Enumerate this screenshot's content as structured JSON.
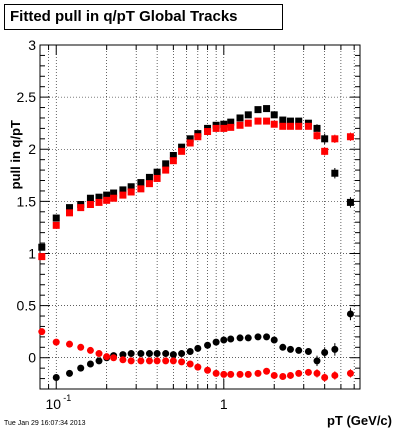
{
  "chart_data": {
    "type": "scatter",
    "title": "Fitted pull in q/pT  Global Tracks",
    "xlabel": "pT (GeV/c)",
    "ylabel": "pull in q/pT",
    "xscale": "log",
    "xlim": [
      0.08,
      6.5
    ],
    "ylim": [
      -0.3,
      3.0
    ],
    "grid": true,
    "x_ticks": [
      {
        "value": 0.1,
        "label": "10",
        "exponent": "-1"
      },
      {
        "value": 1,
        "label": "1",
        "exponent": ""
      }
    ],
    "y_ticks": [
      {
        "value": 0,
        "label": "0"
      },
      {
        "value": 0.5,
        "label": "0.5"
      },
      {
        "value": 1,
        "label": "1"
      },
      {
        "value": 1.5,
        "label": "1.5"
      },
      {
        "value": 2,
        "label": "2"
      },
      {
        "value": 2.5,
        "label": "2.5"
      },
      {
        "value": 3,
        "label": "3"
      }
    ],
    "series": [
      {
        "color": "#000000",
        "marker": "square",
        "points": [
          [
            0.082,
            1.06
          ],
          [
            0.1,
            1.34
          ],
          [
            0.12,
            1.44
          ],
          [
            0.14,
            1.47
          ],
          [
            0.16,
            1.53
          ],
          [
            0.18,
            1.54
          ],
          [
            0.2,
            1.56
          ],
          [
            0.22,
            1.58
          ],
          [
            0.25,
            1.61
          ],
          [
            0.28,
            1.64
          ],
          [
            0.32,
            1.68
          ],
          [
            0.36,
            1.73
          ],
          [
            0.4,
            1.78
          ],
          [
            0.45,
            1.86
          ],
          [
            0.5,
            1.94
          ],
          [
            0.56,
            2.02
          ],
          [
            0.63,
            2.1
          ],
          [
            0.7,
            2.15
          ],
          [
            0.8,
            2.2
          ],
          [
            0.9,
            2.23
          ],
          [
            1.0,
            2.24
          ],
          [
            1.1,
            2.26
          ],
          [
            1.25,
            2.3
          ],
          [
            1.4,
            2.33
          ],
          [
            1.6,
            2.38
          ],
          [
            1.8,
            2.39
          ],
          [
            2.0,
            2.33
          ],
          [
            2.25,
            2.28
          ],
          [
            2.5,
            2.27
          ],
          [
            2.8,
            2.27
          ],
          [
            3.2,
            2.25
          ],
          [
            3.6,
            2.2
          ],
          [
            4.0,
            2.1
          ],
          [
            4.6,
            1.77
          ],
          [
            5.7,
            1.49
          ]
        ],
        "errors": [
          0,
          0,
          0,
          0,
          0,
          0,
          0,
          0,
          0,
          0,
          0,
          0,
          0,
          0,
          0,
          0,
          0,
          0,
          0,
          0,
          0,
          0,
          0,
          0,
          0,
          0,
          0,
          0,
          0,
          0,
          0,
          0.04,
          0.05,
          0.05,
          0.05
        ]
      },
      {
        "color": "#ff0000",
        "marker": "square",
        "points": [
          [
            0.082,
            0.97
          ],
          [
            0.1,
            1.27
          ],
          [
            0.12,
            1.39
          ],
          [
            0.14,
            1.44
          ],
          [
            0.16,
            1.47
          ],
          [
            0.18,
            1.49
          ],
          [
            0.2,
            1.51
          ],
          [
            0.22,
            1.53
          ],
          [
            0.25,
            1.56
          ],
          [
            0.28,
            1.59
          ],
          [
            0.32,
            1.62
          ],
          [
            0.36,
            1.67
          ],
          [
            0.4,
            1.72
          ],
          [
            0.45,
            1.8
          ],
          [
            0.5,
            1.89
          ],
          [
            0.56,
            1.98
          ],
          [
            0.63,
            2.06
          ],
          [
            0.7,
            2.12
          ],
          [
            0.8,
            2.17
          ],
          [
            0.9,
            2.2
          ],
          [
            1.0,
            2.2
          ],
          [
            1.1,
            2.21
          ],
          [
            1.25,
            2.23
          ],
          [
            1.4,
            2.25
          ],
          [
            1.6,
            2.27
          ],
          [
            1.8,
            2.27
          ],
          [
            2.0,
            2.24
          ],
          [
            2.25,
            2.22
          ],
          [
            2.5,
            2.22
          ],
          [
            2.8,
            2.22
          ],
          [
            3.2,
            2.22
          ],
          [
            3.6,
            2.13
          ],
          [
            4.0,
            1.98
          ],
          [
            4.6,
            2.1
          ],
          [
            5.7,
            2.12
          ]
        ],
        "errors": [
          0,
          0,
          0,
          0,
          0,
          0,
          0,
          0,
          0,
          0,
          0,
          0,
          0,
          0,
          0,
          0,
          0,
          0,
          0,
          0,
          0,
          0,
          0,
          0,
          0,
          0,
          0,
          0,
          0,
          0,
          0,
          0.04,
          0.04,
          0.04,
          0.04
        ]
      },
      {
        "color": "#000000",
        "marker": "circle",
        "points": [
          [
            0.1,
            -0.19
          ],
          [
            0.12,
            -0.15
          ],
          [
            0.14,
            -0.1
          ],
          [
            0.16,
            -0.06
          ],
          [
            0.18,
            -0.03
          ],
          [
            0.2,
            0.0
          ],
          [
            0.22,
            0.02
          ],
          [
            0.25,
            0.03
          ],
          [
            0.28,
            0.04
          ],
          [
            0.32,
            0.04
          ],
          [
            0.36,
            0.04
          ],
          [
            0.4,
            0.04
          ],
          [
            0.45,
            0.04
          ],
          [
            0.5,
            0.03
          ],
          [
            0.56,
            0.04
          ],
          [
            0.63,
            0.06
          ],
          [
            0.7,
            0.09
          ],
          [
            0.8,
            0.12
          ],
          [
            0.9,
            0.15
          ],
          [
            1.0,
            0.17
          ],
          [
            1.1,
            0.18
          ],
          [
            1.25,
            0.19
          ],
          [
            1.4,
            0.19
          ],
          [
            1.6,
            0.2
          ],
          [
            1.8,
            0.2
          ],
          [
            2.0,
            0.17
          ],
          [
            2.25,
            0.1
          ],
          [
            2.5,
            0.08
          ],
          [
            2.8,
            0.07
          ],
          [
            3.2,
            0.06
          ],
          [
            3.6,
            -0.03
          ],
          [
            4.0,
            0.05
          ],
          [
            4.6,
            0.08
          ],
          [
            5.7,
            0.42
          ]
        ],
        "errors": [
          0,
          0,
          0,
          0,
          0,
          0,
          0,
          0,
          0,
          0,
          0,
          0,
          0,
          0,
          0,
          0,
          0,
          0,
          0,
          0,
          0,
          0,
          0,
          0,
          0,
          0,
          0,
          0,
          0,
          0,
          0.05,
          0.05,
          0.06,
          0.06
        ]
      },
      {
        "color": "#ff0000",
        "marker": "circle",
        "points": [
          [
            0.082,
            0.25
          ],
          [
            0.1,
            0.15
          ],
          [
            0.12,
            0.13
          ],
          [
            0.14,
            0.1
          ],
          [
            0.16,
            0.07
          ],
          [
            0.18,
            0.04
          ],
          [
            0.2,
            0.01
          ],
          [
            0.22,
            0.0
          ],
          [
            0.25,
            -0.02
          ],
          [
            0.28,
            -0.03
          ],
          [
            0.32,
            -0.03
          ],
          [
            0.36,
            -0.03
          ],
          [
            0.4,
            -0.03
          ],
          [
            0.45,
            -0.03
          ],
          [
            0.5,
            -0.03
          ],
          [
            0.56,
            -0.04
          ],
          [
            0.63,
            -0.06
          ],
          [
            0.7,
            -0.09
          ],
          [
            0.8,
            -0.12
          ],
          [
            0.9,
            -0.15
          ],
          [
            1.0,
            -0.16
          ],
          [
            1.1,
            -0.16
          ],
          [
            1.25,
            -0.16
          ],
          [
            1.4,
            -0.16
          ],
          [
            1.6,
            -0.15
          ],
          [
            1.8,
            -0.13
          ],
          [
            2.0,
            -0.17
          ],
          [
            2.25,
            -0.18
          ],
          [
            2.5,
            -0.17
          ],
          [
            2.8,
            -0.15
          ],
          [
            3.2,
            -0.14
          ],
          [
            3.6,
            -0.15
          ],
          [
            4.0,
            -0.19
          ],
          [
            4.6,
            -0.17
          ],
          [
            5.7,
            -0.15
          ]
        ],
        "errors": [
          0,
          0,
          0,
          0,
          0,
          0,
          0,
          0,
          0,
          0,
          0,
          0,
          0,
          0,
          0,
          0,
          0,
          0,
          0,
          0,
          0,
          0,
          0,
          0,
          0,
          0,
          0,
          0,
          0,
          0,
          0,
          0.04,
          0.04,
          0.04,
          0.04
        ]
      }
    ]
  },
  "footer": {
    "timestamp": "Tue Jan 29 16:07:34 2013"
  }
}
